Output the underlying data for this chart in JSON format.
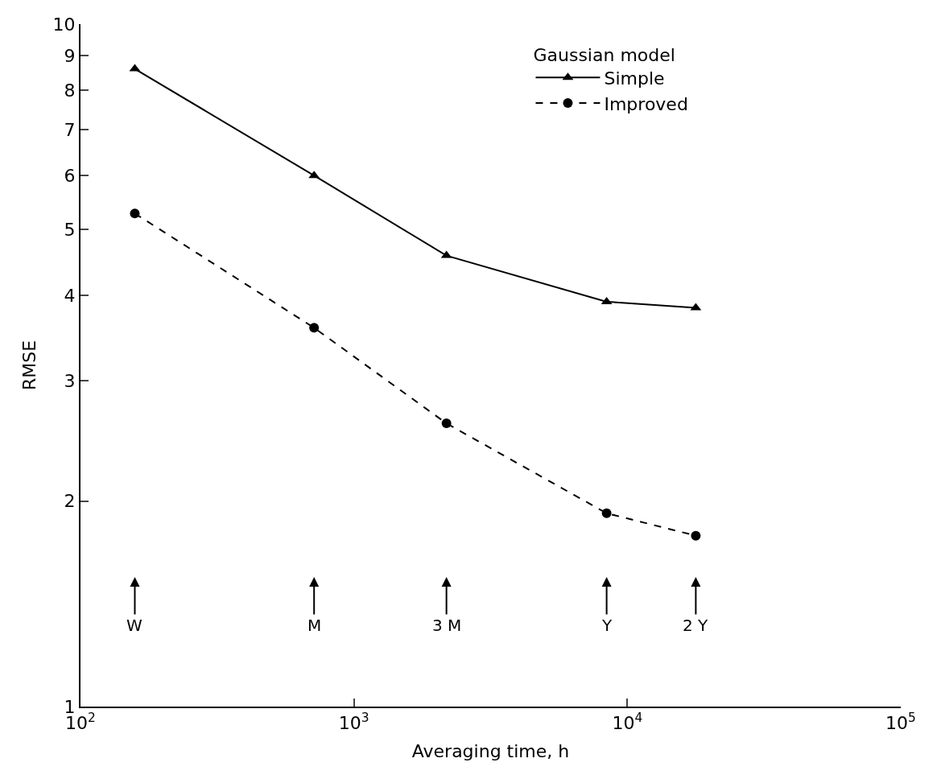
{
  "chart_data": {
    "type": "line",
    "xlabel": "Averaging time, h",
    "ylabel": "RMSE",
    "legend_title": "Gaussian model",
    "legend": "top right",
    "log": "xy",
    "x": [
      158,
      715,
      2180,
      8400,
      17800
    ],
    "xlim": [
      100,
      100000
    ],
    "xticks": [
      {
        "value": 100,
        "label": "10$^{2}$"
      },
      {
        "value": 1000,
        "label": "10$^{3}$"
      },
      {
        "value": 10000,
        "label": "10$^{4}$"
      },
      {
        "value": 100000,
        "label": "10$^{5}$"
      }
    ],
    "ylim": [
      1,
      10
    ],
    "yticks": [
      1,
      2,
      3,
      4,
      5,
      6,
      7,
      8,
      9,
      10
    ],
    "series": [
      {
        "name": "Simple",
        "color": "#000000",
        "marker": "triangle",
        "line_style": "solid",
        "values": [
          8.6,
          6.0,
          4.58,
          3.92,
          3.84
        ]
      },
      {
        "name": "Improved",
        "color": "#000000",
        "marker": "circle",
        "line_style": "dashed",
        "values": [
          5.28,
          3.59,
          2.6,
          1.92,
          1.78
        ]
      }
    ],
    "annotations": [
      "W",
      "M",
      "3 M",
      "Y",
      "2 Y"
    ]
  }
}
